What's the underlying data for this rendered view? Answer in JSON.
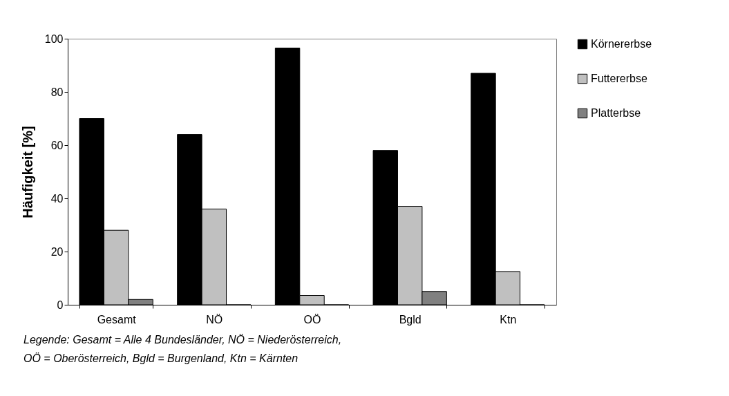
{
  "chart_data": {
    "type": "bar",
    "ylabel": "Häufigkeit [%]",
    "categories": [
      "Gesamt",
      "NÖ",
      "OÖ",
      "Bgld",
      "Ktn"
    ],
    "series": [
      {
        "name": "Körnererbse",
        "color": "#000000",
        "values": [
          70,
          64,
          96.5,
          58,
          87
        ]
      },
      {
        "name": "Futtererbse",
        "color": "#c0c0c0",
        "values": [
          28,
          36,
          3.5,
          37,
          12.5
        ]
      },
      {
        "name": "Platterbse",
        "color": "#808080",
        "values": [
          2,
          0,
          0,
          5,
          0
        ]
      }
    ],
    "ylim": [
      0,
      100
    ],
    "yticks": [
      0,
      20,
      40,
      60,
      80,
      100
    ],
    "grid": false,
    "legend": "right",
    "annotations": [
      "Legende: Gesamt = Alle 4 Bundesländer, NÖ = Niederösterreich,",
      "OÖ = Oberösterreich, Bgld = Burgenland, Ktn = Kärnten"
    ]
  }
}
